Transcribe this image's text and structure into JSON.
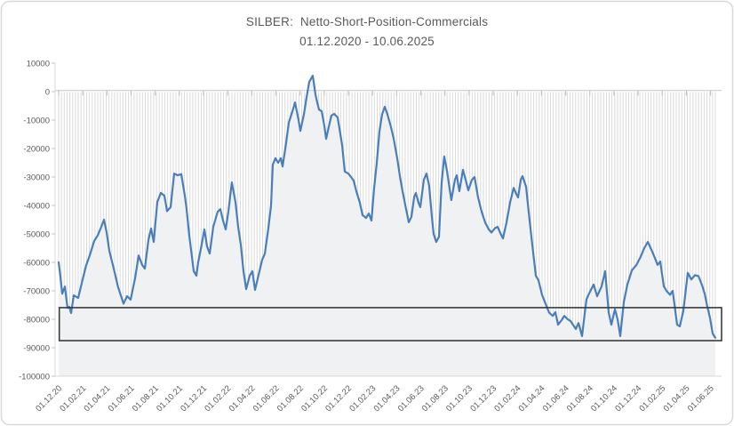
{
  "chart": {
    "title": "SILBER:  Netto-Short-Position-Commercials",
    "subtitle": "01.12.2020 - 10.06.2025",
    "chart_data": {
      "type": "line",
      "title": "SILBER:  Netto-Short-Position-Commercials",
      "subtitle": "01.12.2020 - 10.06.2025",
      "series_name": "Netto-Short-Position Commercials (Silber)",
      "x_domain": [
        "01.12.2020",
        "10.06.2025"
      ],
      "ylim": [
        -100000,
        10000
      ],
      "grid": "zero-line-only",
      "legend": "none",
      "x_tick_labels": [
        "01.12.20",
        "01.02.21",
        "01.04.21",
        "01.06.21",
        "01.08.21",
        "01.10.21",
        "01.12.21",
        "01.02.22",
        "01.04.22",
        "01.06.22",
        "01.08.22",
        "01.10.22",
        "01.12.22",
        "01.02.23",
        "01.04.23",
        "01.06.23",
        "01.08.23",
        "01.10.23",
        "01.12.23",
        "01.02.24",
        "01.04.24",
        "01.06.24",
        "01.08.24",
        "01.10.24",
        "01.12.24",
        "01.02.25",
        "01.04.25",
        "01.06.25"
      ],
      "y_ticks": [
        10000,
        0,
        -10000,
        -20000,
        -30000,
        -40000,
        -50000,
        -60000,
        -70000,
        -80000,
        -90000,
        -100000
      ],
      "weekly_points_count": 236,
      "annotation_box": {
        "x1_frac": 0.001,
        "x2_frac": 1.0095,
        "v_top": -75900,
        "v_bottom": -87500
      },
      "points": [
        [
          0.0,
          -60000
        ],
        [
          0.0027,
          -65000
        ],
        [
          0.0054,
          -71000
        ],
        [
          0.0095,
          -68500
        ],
        [
          0.0135,
          -76000
        ],
        [
          0.0162,
          -75600
        ],
        [
          0.0189,
          -77800
        ],
        [
          0.023,
          -71600
        ],
        [
          0.0298,
          -72500
        ],
        [
          0.0365,
          -66000
        ],
        [
          0.0419,
          -61000
        ],
        [
          0.0474,
          -57500
        ],
        [
          0.0541,
          -52500
        ],
        [
          0.0595,
          -50500
        ],
        [
          0.065,
          -47500
        ],
        [
          0.069,
          -45000
        ],
        [
          0.0731,
          -49500
        ],
        [
          0.0771,
          -55900
        ],
        [
          0.0839,
          -62200
        ],
        [
          0.0907,
          -68800
        ],
        [
          0.0988,
          -74500
        ],
        [
          0.1042,
          -71900
        ],
        [
          0.1096,
          -73100
        ],
        [
          0.1164,
          -65600
        ],
        [
          0.1218,
          -57600
        ],
        [
          0.1272,
          -60900
        ],
        [
          0.1313,
          -62200
        ],
        [
          0.1367,
          -52200
        ],
        [
          0.1407,
          -48100
        ],
        [
          0.1448,
          -52800
        ],
        [
          0.1502,
          -38800
        ],
        [
          0.1556,
          -35600
        ],
        [
          0.161,
          -36600
        ],
        [
          0.1651,
          -42000
        ],
        [
          0.1705,
          -40600
        ],
        [
          0.1759,
          -28800
        ],
        [
          0.1813,
          -29400
        ],
        [
          0.1867,
          -29000
        ],
        [
          0.1921,
          -36600
        ],
        [
          0.1948,
          -41300
        ],
        [
          0.1989,
          -50600
        ],
        [
          0.2057,
          -63100
        ],
        [
          0.2097,
          -64700
        ],
        [
          0.2124,
          -60000
        ],
        [
          0.2165,
          -55300
        ],
        [
          0.2219,
          -48400
        ],
        [
          0.226,
          -54400
        ],
        [
          0.23,
          -56900
        ],
        [
          0.2354,
          -47500
        ],
        [
          0.2422,
          -42200
        ],
        [
          0.2463,
          -41300
        ],
        [
          0.2503,
          -45300
        ],
        [
          0.2544,
          -48400
        ],
        [
          0.2584,
          -42200
        ],
        [
          0.2638,
          -31900
        ],
        [
          0.2693,
          -38800
        ],
        [
          0.2733,
          -47500
        ],
        [
          0.2774,
          -53800
        ],
        [
          0.2814,
          -63100
        ],
        [
          0.2855,
          -69400
        ],
        [
          0.2909,
          -64700
        ],
        [
          0.295,
          -63100
        ],
        [
          0.299,
          -69700
        ],
        [
          0.3058,
          -63100
        ],
        [
          0.3099,
          -59100
        ],
        [
          0.3139,
          -57000
        ],
        [
          0.3193,
          -48000
        ],
        [
          0.3234,
          -40000
        ],
        [
          0.3261,
          -25600
        ],
        [
          0.3302,
          -23400
        ],
        [
          0.3342,
          -25000
        ],
        [
          0.3383,
          -23400
        ],
        [
          0.341,
          -26300
        ],
        [
          0.3464,
          -18000
        ],
        [
          0.3505,
          -10900
        ],
        [
          0.3559,
          -7000
        ],
        [
          0.3599,
          -3800
        ],
        [
          0.3654,
          -10000
        ],
        [
          0.3681,
          -13800
        ],
        [
          0.3735,
          -8000
        ],
        [
          0.3775,
          -2000
        ],
        [
          0.3816,
          3400
        ],
        [
          0.387,
          5600
        ],
        [
          0.3911,
          -1000
        ],
        [
          0.3938,
          -3800
        ],
        [
          0.3965,
          -6300
        ],
        [
          0.4005,
          -6900
        ],
        [
          0.4046,
          -12000
        ],
        [
          0.4073,
          -16600
        ],
        [
          0.4127,
          -11000
        ],
        [
          0.4154,
          -8400
        ],
        [
          0.4195,
          -7800
        ],
        [
          0.4249,
          -9100
        ],
        [
          0.4316,
          -18800
        ],
        [
          0.4357,
          -28100
        ],
        [
          0.4411,
          -28800
        ],
        [
          0.4452,
          -30000
        ],
        [
          0.4492,
          -31300
        ],
        [
          0.4533,
          -35000
        ],
        [
          0.4587,
          -39100
        ],
        [
          0.4628,
          -43400
        ],
        [
          0.4682,
          -44400
        ],
        [
          0.4722,
          -42800
        ],
        [
          0.4763,
          -45300
        ],
        [
          0.4804,
          -34000
        ],
        [
          0.4844,
          -25000
        ],
        [
          0.4885,
          -14000
        ],
        [
          0.4925,
          -8000
        ],
        [
          0.4966,
          -5300
        ],
        [
          0.5007,
          -8000
        ],
        [
          0.5061,
          -12500
        ],
        [
          0.5101,
          -16500
        ],
        [
          0.5155,
          -23400
        ],
        [
          0.5196,
          -29700
        ],
        [
          0.5237,
          -35000
        ],
        [
          0.5291,
          -41300
        ],
        [
          0.5331,
          -45900
        ],
        [
          0.5372,
          -44000
        ],
        [
          0.5413,
          -37200
        ],
        [
          0.544,
          -35600
        ],
        [
          0.548,
          -39100
        ],
        [
          0.5507,
          -40600
        ],
        [
          0.5561,
          -30900
        ],
        [
          0.5602,
          -28800
        ],
        [
          0.5642,
          -33000
        ],
        [
          0.5683,
          -44000
        ],
        [
          0.571,
          -50000
        ],
        [
          0.575,
          -52800
        ],
        [
          0.5791,
          -51000
        ],
        [
          0.5832,
          -31900
        ],
        [
          0.5872,
          -22800
        ],
        [
          0.5913,
          -27800
        ],
        [
          0.5953,
          -34000
        ],
        [
          0.598,
          -38100
        ],
        [
          0.6035,
          -30900
        ],
        [
          0.6062,
          -29400
        ],
        [
          0.6102,
          -35000
        ],
        [
          0.6157,
          -27500
        ],
        [
          0.6197,
          -31000
        ],
        [
          0.6238,
          -34700
        ],
        [
          0.6292,
          -31000
        ],
        [
          0.6333,
          -30000
        ],
        [
          0.6387,
          -37200
        ],
        [
          0.6441,
          -42200
        ],
        [
          0.6495,
          -46000
        ],
        [
          0.6549,
          -48400
        ],
        [
          0.659,
          -49500
        ],
        [
          0.6644,
          -48000
        ],
        [
          0.6685,
          -47500
        ],
        [
          0.6725,
          -49700
        ],
        [
          0.6766,
          -51600
        ],
        [
          0.682,
          -46000
        ],
        [
          0.6874,
          -39000
        ],
        [
          0.6928,
          -33800
        ],
        [
          0.6969,
          -36000
        ],
        [
          0.6996,
          -37200
        ],
        [
          0.7037,
          -31000
        ],
        [
          0.7064,
          -29700
        ],
        [
          0.7118,
          -33400
        ],
        [
          0.7172,
          -45300
        ],
        [
          0.7213,
          -53800
        ],
        [
          0.7267,
          -64700
        ],
        [
          0.7307,
          -66300
        ],
        [
          0.7361,
          -71400
        ],
        [
          0.7415,
          -74600
        ],
        [
          0.7469,
          -77700
        ],
        [
          0.7524,
          -78800
        ],
        [
          0.7564,
          -77500
        ],
        [
          0.7605,
          -81900
        ],
        [
          0.7659,
          -80300
        ],
        [
          0.7699,
          -78800
        ],
        [
          0.7753,
          -80000
        ],
        [
          0.7794,
          -80600
        ],
        [
          0.7835,
          -82000
        ],
        [
          0.7875,
          -83400
        ],
        [
          0.7916,
          -81300
        ],
        [
          0.797,
          -85900
        ],
        [
          0.8011,
          -78000
        ],
        [
          0.8038,
          -73000
        ],
        [
          0.8078,
          -70900
        ],
        [
          0.8146,
          -67800
        ],
        [
          0.82,
          -71900
        ],
        [
          0.8268,
          -68400
        ],
        [
          0.8322,
          -63100
        ],
        [
          0.8376,
          -77700
        ],
        [
          0.8417,
          -81900
        ],
        [
          0.8471,
          -76500
        ],
        [
          0.8511,
          -80000
        ],
        [
          0.8552,
          -85900
        ],
        [
          0.8606,
          -74000
        ],
        [
          0.866,
          -67800
        ],
        [
          0.8728,
          -62800
        ],
        [
          0.8796,
          -61000
        ],
        [
          0.8863,
          -58000
        ],
        [
          0.8917,
          -55000
        ],
        [
          0.8972,
          -52800
        ],
        [
          0.9026,
          -55500
        ],
        [
          0.908,
          -58500
        ],
        [
          0.912,
          -60900
        ],
        [
          0.9161,
          -59700
        ],
        [
          0.9215,
          -68400
        ],
        [
          0.9256,
          -70000
        ],
        [
          0.931,
          -71400
        ],
        [
          0.935,
          -70000
        ],
        [
          0.9418,
          -81900
        ],
        [
          0.9459,
          -82500
        ],
        [
          0.9513,
          -77000
        ],
        [
          0.958,
          -63700
        ],
        [
          0.9635,
          -66000
        ],
        [
          0.9689,
          -64500
        ],
        [
          0.9743,
          -64800
        ],
        [
          0.9797,
          -68000
        ],
        [
          0.9837,
          -71000
        ],
        [
          0.9878,
          -75600
        ],
        [
          0.9919,
          -79500
        ],
        [
          0.9959,
          -85000
        ],
        [
          1.0,
          -86500
        ]
      ]
    },
    "colors": {
      "line": "#4a7ebb",
      "area": "#f0f1f2",
      "stripe": "#dadada",
      "zero_grid": "#c6c6c6",
      "axis": "#d9d9d9",
      "tick": "#c3c3c3",
      "text": "#595959",
      "box": "#3b3b3b",
      "border": "#d9d9d9"
    }
  }
}
